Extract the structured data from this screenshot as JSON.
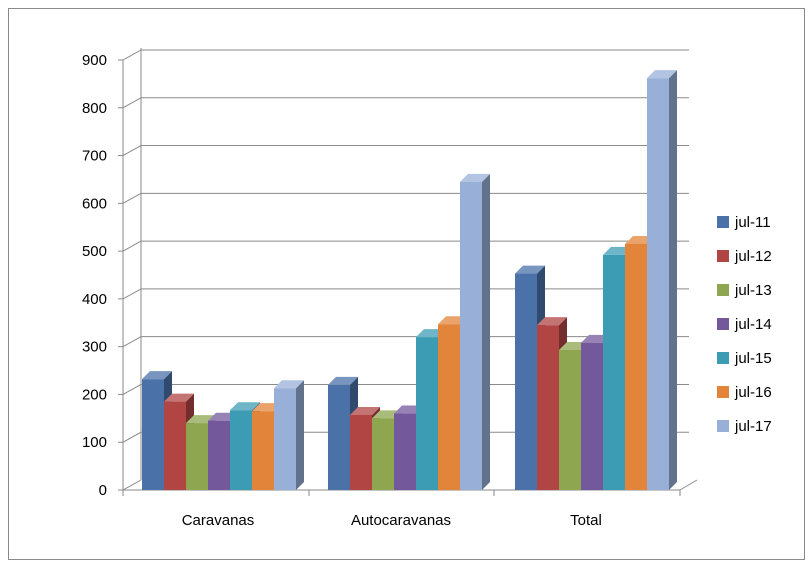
{
  "chart_data": {
    "type": "bar",
    "categories": [
      "Caravanas",
      "Autocaravanas",
      "Total"
    ],
    "series": [
      {
        "name": "jul-11",
        "values": [
          232,
          220,
          453
        ]
      },
      {
        "name": "jul-12",
        "values": [
          185,
          157,
          345
        ]
      },
      {
        "name": "jul-13",
        "values": [
          140,
          150,
          293
        ]
      },
      {
        "name": "jul-14",
        "values": [
          145,
          160,
          308
        ]
      },
      {
        "name": "jul-15",
        "values": [
          167,
          320,
          492
        ]
      },
      {
        "name": "jul-16",
        "values": [
          165,
          347,
          515
        ]
      },
      {
        "name": "jul-17",
        "values": [
          213,
          645,
          862
        ]
      }
    ],
    "colors": [
      "#4a72a8",
      "#b04543",
      "#8ea64f",
      "#73589b",
      "#3c9cb4",
      "#e2843a",
      "#98b0d8"
    ],
    "yticks": [
      "0",
      "100",
      "200",
      "300",
      "400",
      "500",
      "600",
      "700",
      "800",
      "900"
    ],
    "ylim": [
      0,
      900
    ],
    "grid": true,
    "legend_position": "right",
    "style": "3d-clustered-column"
  }
}
